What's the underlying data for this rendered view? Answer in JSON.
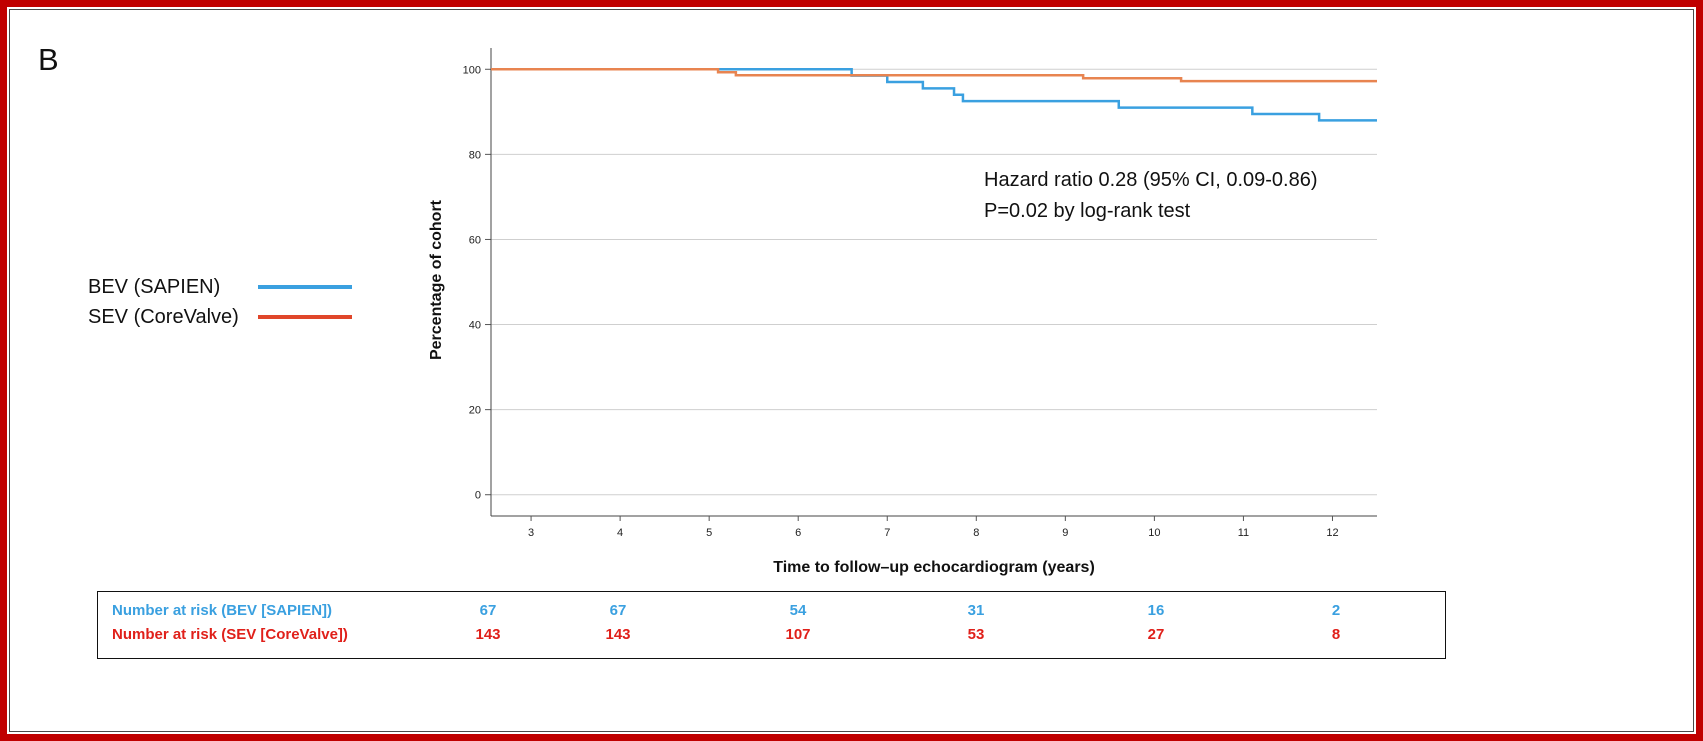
{
  "panel_label": "B",
  "legend": {
    "items": [
      {
        "label": "BEV (SAPIEN)",
        "color": "#3aa0e0"
      },
      {
        "label": "SEV (CoreValve)",
        "color": "#e0462a"
      }
    ]
  },
  "chart_data": {
    "type": "line",
    "xlabel": "Time to follow–up echocardiogram (years)",
    "ylabel": "Percentage of cohort",
    "xlim": [
      2.55,
      12.5
    ],
    "ylim": [
      -5,
      105
    ],
    "x_ticks": [
      3,
      4,
      5,
      6,
      7,
      8,
      9,
      10,
      11,
      12
    ],
    "y_ticks": [
      0,
      20,
      40,
      60,
      80,
      100
    ],
    "grid": "horizontal",
    "annotations": [
      "Hazard ratio 0.28 (95% CI, 0.09-0.86)",
      "P=0.02 by log-rank test"
    ],
    "series": [
      {
        "name": "BEV (SAPIEN)",
        "color": "#3aa0e0",
        "step": true,
        "points": [
          [
            2.55,
            100
          ],
          [
            6.6,
            98.5
          ],
          [
            7.0,
            97
          ],
          [
            7.4,
            95.5
          ],
          [
            7.75,
            94
          ],
          [
            7.85,
            92.5
          ],
          [
            9.6,
            91
          ],
          [
            11.1,
            89.5
          ],
          [
            11.85,
            88
          ],
          [
            12.5,
            88
          ]
        ]
      },
      {
        "name": "SEV (CoreValve)",
        "color": "#e88450",
        "step": true,
        "points": [
          [
            2.55,
            100
          ],
          [
            5.1,
            99.3
          ],
          [
            5.3,
            98.6
          ],
          [
            9.2,
            97.9
          ],
          [
            10.3,
            97.2
          ],
          [
            12.5,
            97.2
          ]
        ]
      }
    ]
  },
  "risk_table": {
    "rows": [
      {
        "label": "Number at risk (BEV [SAPIEN])",
        "color": "#3aa0e0",
        "values": [
          "67",
          "67",
          "54",
          "31",
          "16",
          "2"
        ]
      },
      {
        "label": "Number at risk (SEV [CoreValve])",
        "color": "#e0201a",
        "values": [
          "143",
          "143",
          "107",
          "53",
          "27",
          "8"
        ]
      }
    ]
  }
}
